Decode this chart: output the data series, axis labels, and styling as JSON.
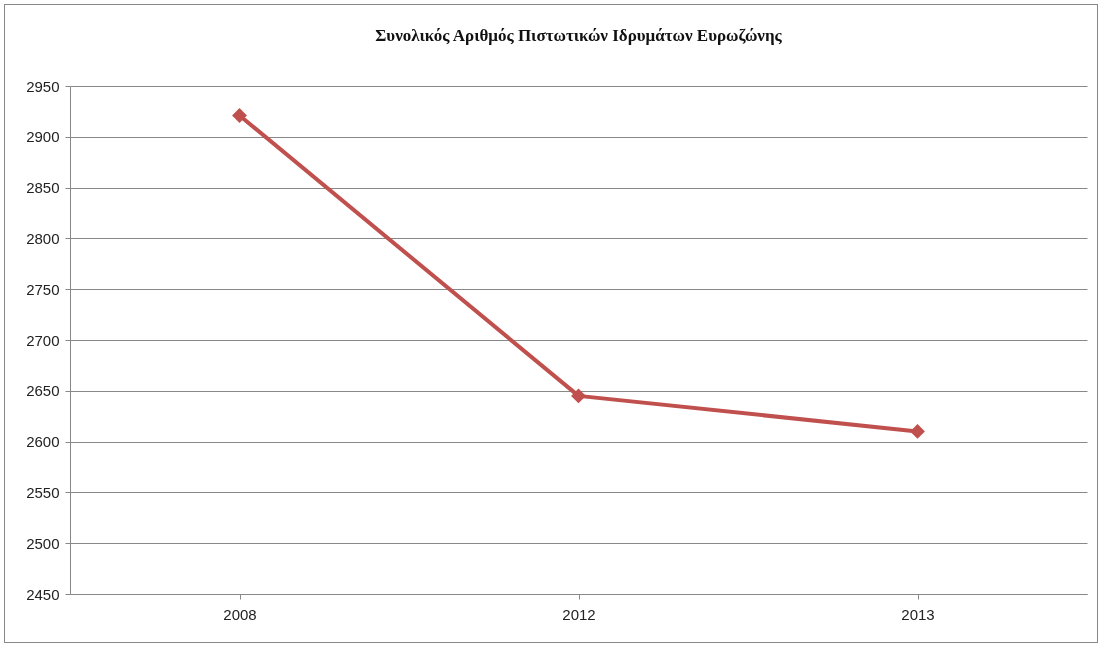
{
  "chart_data": {
    "type": "line",
    "title": "Συνολικός Αριθμός Πιστωτικών Ιδρυμάτων Ευρωζώνης",
    "categories": [
      "2008",
      "2012",
      "2013"
    ],
    "series": [
      {
        "color": "#c0504d",
        "values": [
          2921,
          2645,
          2610
        ]
      }
    ],
    "ylim": [
      2450,
      2950
    ],
    "yticks": [
      2450,
      2500,
      2550,
      2600,
      2650,
      2700,
      2750,
      2800,
      2850,
      2900,
      2950
    ],
    "grid": "y",
    "marker": "diamond",
    "legend": false
  }
}
